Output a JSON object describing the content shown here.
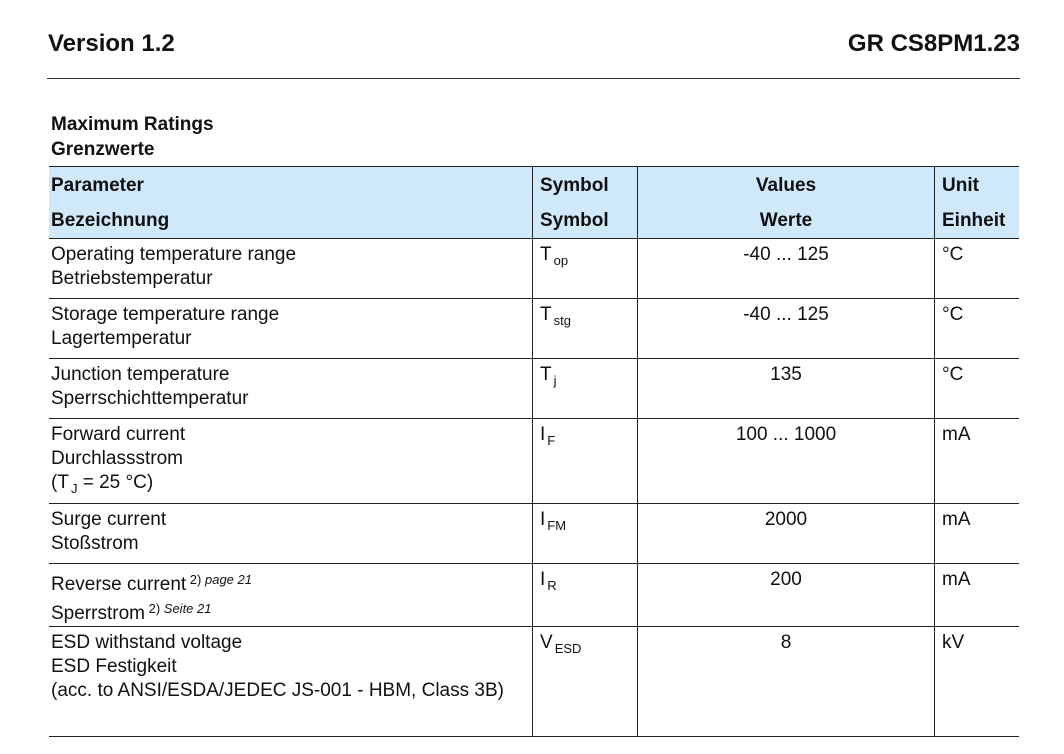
{
  "header": {
    "version": "Version 1.2",
    "part_number": "GR CS8PM1.23"
  },
  "section": {
    "title_en": "Maximum Ratings",
    "title_de": "Grenzwerte"
  },
  "table": {
    "columns": [
      {
        "en": "Parameter",
        "de": "Bezeichnung"
      },
      {
        "en": "Symbol",
        "de": "Symbol"
      },
      {
        "en": "Values",
        "de": "Werte"
      },
      {
        "en": "Unit",
        "de": "Einheit"
      }
    ],
    "rows": [
      {
        "param": [
          "Operating temperature range",
          "Betriebstemperatur"
        ],
        "symbol": "T",
        "sub": "op",
        "value": "-40 ... 125",
        "unit": "°C"
      },
      {
        "param": [
          "Storage temperature range",
          "Lagertemperatur"
        ],
        "symbol": "T",
        "sub": "stg",
        "value": "-40 ... 125",
        "unit": "°C"
      },
      {
        "param": [
          "Junction temperature",
          "Sperrschichttemperatur"
        ],
        "symbol": "T",
        "sub": "j",
        "value": "135",
        "unit": "°C"
      },
      {
        "param": [
          "Forward current",
          "Durchlassstrom"
        ],
        "condition": {
          "pre": "(T",
          "sub": "J",
          "post": " = 25 °C)"
        },
        "symbol": "I",
        "sub": "F",
        "value": "100 ... 1000",
        "unit": "mA"
      },
      {
        "param": [
          "Surge current",
          "Stoßstrom"
        ],
        "symbol": "I",
        "sub": "FM",
        "value": "2000",
        "unit": "mA"
      },
      {
        "param": [
          "Reverse current",
          "Sperrstrom"
        ],
        "footnotes": [
          {
            "num": "2)",
            "ref": "page 21"
          },
          {
            "num": "2)",
            "ref": "Seite 21"
          }
        ],
        "symbol": "I",
        "sub": "R",
        "value": "200",
        "unit": "mA"
      },
      {
        "param": [
          "ESD withstand voltage",
          "ESD Festigkeit",
          "(acc. to ANSI/ESDA/JEDEC JS-001 - HBM, Class 3B)"
        ],
        "symbol": "V",
        "sub": "ESD",
        "value": "8",
        "unit": "kV"
      }
    ]
  },
  "colors": {
    "header_bg": "#cfe8fa"
  }
}
